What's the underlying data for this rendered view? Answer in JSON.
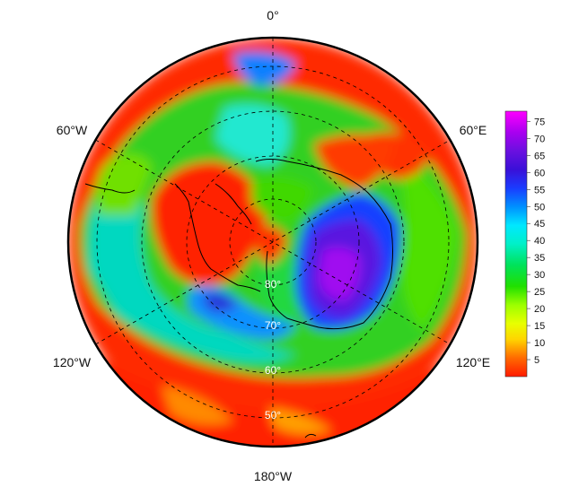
{
  "map": {
    "projection": "south-polar-stereographic",
    "longitude_labels": {
      "top": "0°",
      "upper_left": "60°W",
      "upper_right": "60°E",
      "lower_left": "120°W",
      "lower_right": "120°E",
      "bottom": "180°W"
    },
    "latitude_labels": [
      "80°",
      "70°",
      "60°",
      "50°"
    ],
    "graticule": "dashed",
    "coastlines": "black"
  },
  "colorbar": {
    "ticks": [
      "75",
      "70",
      "65",
      "60",
      "55",
      "50",
      "45",
      "40",
      "35",
      "30",
      "25",
      "20",
      "15",
      "10",
      "5"
    ],
    "min": 0,
    "max": 78,
    "colors": [
      "#ff1a00",
      "#ff6a00",
      "#ffd400",
      "#e8ff00",
      "#9cff00",
      "#20e000",
      "#00e25a",
      "#00f0c8",
      "#00e8ff",
      "#0090ff",
      "#1a3cff",
      "#3a10d8",
      "#6a10e0",
      "#a800f0",
      "#ff00ff"
    ]
  }
}
